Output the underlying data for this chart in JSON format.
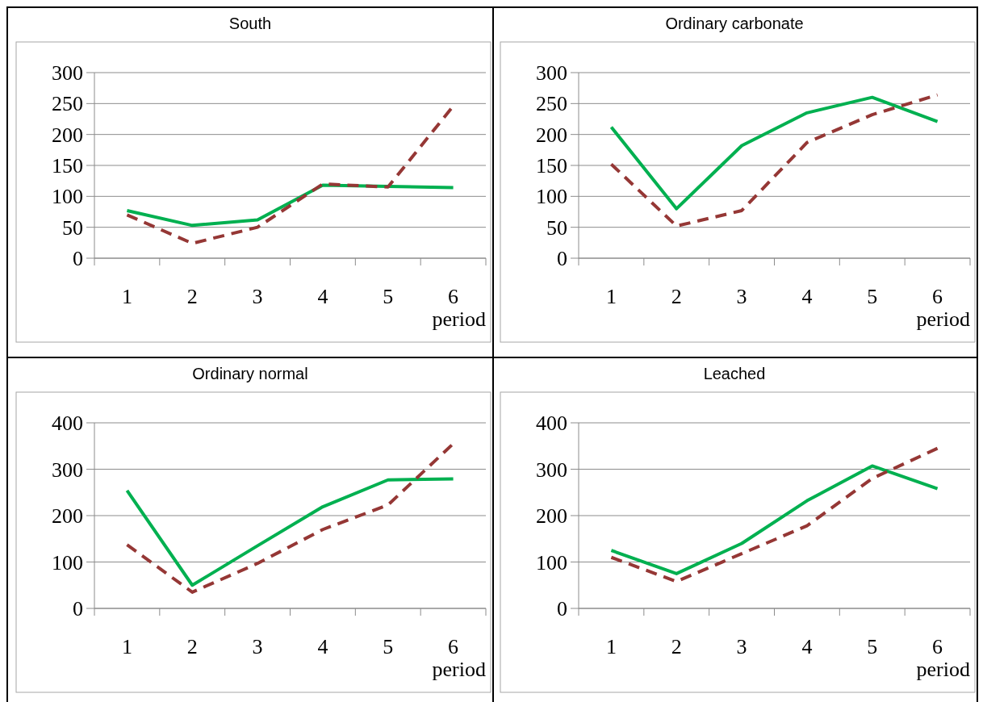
{
  "chart_data": [
    {
      "type": "line",
      "title": "South",
      "xlabel": "period",
      "categories": [
        "1",
        "2",
        "3",
        "4",
        "5",
        "6"
      ],
      "ylim": [
        0,
        300
      ],
      "yticks": [
        0,
        50,
        100,
        150,
        200,
        250,
        300
      ],
      "grid": "y",
      "marker": "none",
      "series": [
        {
          "color": "#00b050",
          "line_style": "solid",
          "values": [
            77,
            53,
            62,
            118,
            116,
            114
          ]
        },
        {
          "color": "#953735",
          "line_style": "dashed",
          "values": [
            70,
            24,
            50,
            120,
            115,
            246
          ]
        }
      ]
    },
    {
      "type": "line",
      "title": "Ordinary carbonate",
      "xlabel": "period",
      "categories": [
        "1",
        "2",
        "3",
        "4",
        "5",
        "6"
      ],
      "ylim": [
        0,
        300
      ],
      "yticks": [
        0,
        50,
        100,
        150,
        200,
        250,
        300
      ],
      "grid": "y",
      "marker": "none",
      "series": [
        {
          "color": "#00b050",
          "line_style": "solid",
          "values": [
            212,
            80,
            182,
            235,
            260,
            221
          ]
        },
        {
          "color": "#953735",
          "line_style": "dashed",
          "values": [
            152,
            52,
            77,
            187,
            232,
            264
          ]
        }
      ]
    },
    {
      "type": "line",
      "title": "Ordinary normal",
      "xlabel": "period",
      "categories": [
        "1",
        "2",
        "3",
        "4",
        "5",
        "6"
      ],
      "ylim": [
        0,
        400
      ],
      "yticks": [
        0,
        100,
        200,
        300,
        400
      ],
      "grid": "y",
      "marker": "none",
      "series": [
        {
          "color": "#00b050",
          "line_style": "solid",
          "values": [
            254,
            50,
            135,
            219,
            277,
            279
          ]
        },
        {
          "color": "#953735",
          "line_style": "dashed",
          "values": [
            137,
            35,
            97,
            170,
            223,
            355
          ]
        }
      ]
    },
    {
      "type": "line",
      "title": "Leached",
      "xlabel": "period",
      "categories": [
        "1",
        "2",
        "3",
        "4",
        "5",
        "6"
      ],
      "ylim": [
        0,
        400
      ],
      "yticks": [
        0,
        100,
        200,
        300,
        400
      ],
      "grid": "y",
      "marker": "none",
      "series": [
        {
          "color": "#00b050",
          "line_style": "solid",
          "values": [
            125,
            75,
            140,
            232,
            307,
            258
          ]
        },
        {
          "color": "#953735",
          "line_style": "dashed",
          "values": [
            110,
            58,
            118,
            178,
            280,
            345
          ]
        }
      ]
    }
  ]
}
